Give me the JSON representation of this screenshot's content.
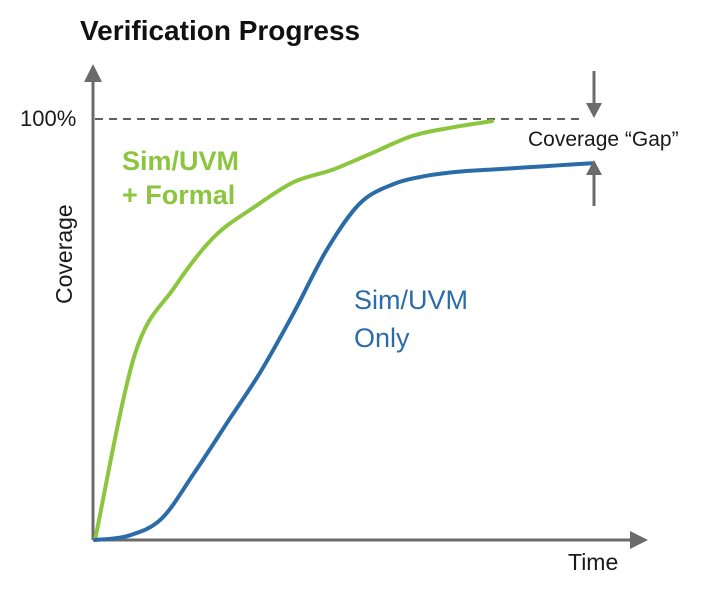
{
  "chart_data": {
    "type": "line",
    "title": "Verification Progress",
    "xlabel": "Time",
    "ylabel": "Coverage",
    "ylim": [
      0,
      100
    ],
    "yticks": [
      {
        "value": 100,
        "label": "100%"
      }
    ],
    "grid": false,
    "reference_line": {
      "value": 100,
      "style": "dashed"
    },
    "series": [
      {
        "key": "formal",
        "name_lines": [
          "Sim/UVM",
          "+ Formal"
        ],
        "color": "#8cc63f",
        "x": [
          0,
          1,
          2,
          3,
          4,
          5,
          6,
          7,
          8,
          9,
          10
        ],
        "y": [
          0,
          44,
          60,
          72,
          79,
          85,
          88,
          92,
          96,
          98,
          99.5
        ]
      },
      {
        "key": "sim",
        "name_lines": [
          "Sim/UVM",
          "Only"
        ],
        "color": "#2b6ca8",
        "x": [
          0,
          1,
          2,
          3,
          4,
          5,
          6,
          7,
          8,
          9,
          10,
          11,
          12,
          13,
          14,
          15
        ],
        "y": [
          0,
          1,
          5,
          16,
          28,
          40,
          54,
          69,
          80,
          84.5,
          86.5,
          87.5,
          88,
          88.5,
          89,
          89.5
        ]
      }
    ],
    "annotation": {
      "label": "Coverage “Gap”"
    }
  },
  "colors": {
    "axis": "#6b6b6b",
    "reference": "#5f5f5f",
    "arrow": "#6b6b6b",
    "title": "#111111"
  }
}
